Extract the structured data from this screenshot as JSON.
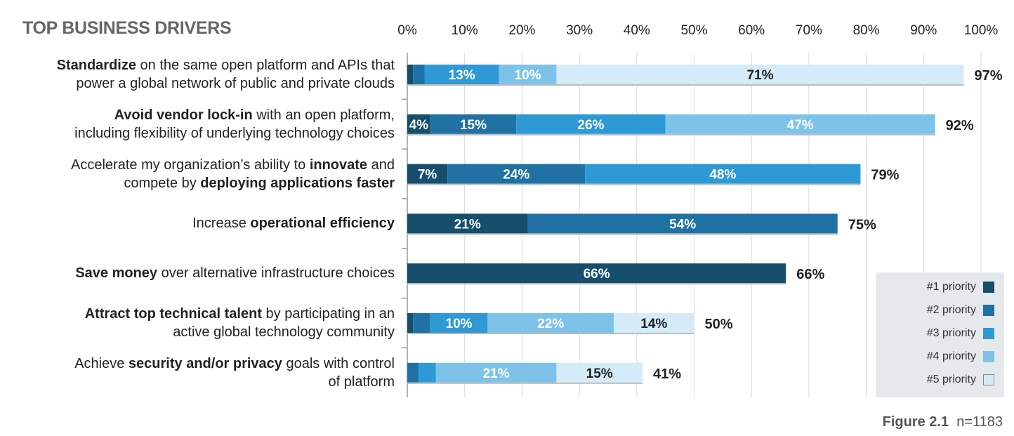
{
  "chart_data": {
    "type": "bar",
    "orientation": "horizontal",
    "stacked": true,
    "title": "TOP BUSINESS DRIVERS",
    "xlim": [
      0,
      100
    ],
    "x_ticks": [
      "0%",
      "10%",
      "20%",
      "30%",
      "40%",
      "50%",
      "60%",
      "70%",
      "80%",
      "90%",
      "100%"
    ],
    "grid": true,
    "legend_placement": "bottom-right",
    "categories": [
      {
        "lines": [
          [
            {
              "t": "Standardize",
              "b": true
            },
            {
              "t": " on the same open platform and APIs that",
              "b": false
            }
          ],
          [
            {
              "t": "power a global network of public and private clouds",
              "b": false
            }
          ]
        ]
      },
      {
        "lines": [
          [
            {
              "t": "Avoid vendor lock-in",
              "b": true
            },
            {
              "t": " with an open platform,",
              "b": false
            }
          ],
          [
            {
              "t": "including flexibility of underlying technology choices",
              "b": false
            }
          ]
        ]
      },
      {
        "lines": [
          [
            {
              "t": "Accelerate my organization’s ability to ",
              "b": false
            },
            {
              "t": "innovate",
              "b": true
            },
            {
              "t": " and",
              "b": false
            }
          ],
          [
            {
              "t": "compete by ",
              "b": false
            },
            {
              "t": "deploying applications faster",
              "b": true
            }
          ]
        ]
      },
      {
        "lines": [
          [
            {
              "t": "Increase ",
              "b": false
            },
            {
              "t": "operational efficiency",
              "b": true
            }
          ]
        ]
      },
      {
        "lines": [
          [
            {
              "t": "Save money",
              "b": true
            },
            {
              "t": " over alternative infrastructure choices",
              "b": false
            }
          ]
        ]
      },
      {
        "lines": [
          [
            {
              "t": "Attract top technical talent",
              "b": true
            },
            {
              "t": " by participating in an",
              "b": false
            }
          ],
          [
            {
              "t": "active global technology community",
              "b": false
            }
          ]
        ]
      },
      {
        "lines": [
          [
            {
              "t": "Achieve ",
              "b": false
            },
            {
              "t": "security and/or privacy",
              "b": true
            },
            {
              "t": " goals with control",
              "b": false
            }
          ],
          [
            {
              "t": "of platform",
              "b": false
            }
          ]
        ]
      }
    ],
    "series": [
      {
        "name": "#1 priority",
        "color": "#164e6e",
        "values": [
          1,
          4,
          7,
          21,
          66,
          1,
          0
        ]
      },
      {
        "name": "#2 priority",
        "color": "#1f72a3",
        "values": [
          2,
          15,
          24,
          54,
          0,
          3,
          2
        ]
      },
      {
        "name": "#3 priority",
        "color": "#2d9ad6",
        "values": [
          13,
          26,
          48,
          0,
          0,
          10,
          3
        ]
      },
      {
        "name": "#4 priority",
        "color": "#7dc3e9",
        "values": [
          10,
          47,
          0,
          0,
          0,
          22,
          21
        ]
      },
      {
        "name": "#5 priority",
        "color": "#d4ecf9",
        "values": [
          71,
          0,
          0,
          0,
          0,
          14,
          15
        ]
      }
    ],
    "totals": [
      "97%",
      "92%",
      "79%",
      "75%",
      "66%",
      "50%",
      "41%"
    ]
  },
  "footer": {
    "figure": "Figure 2.1",
    "n": "n=1183"
  }
}
